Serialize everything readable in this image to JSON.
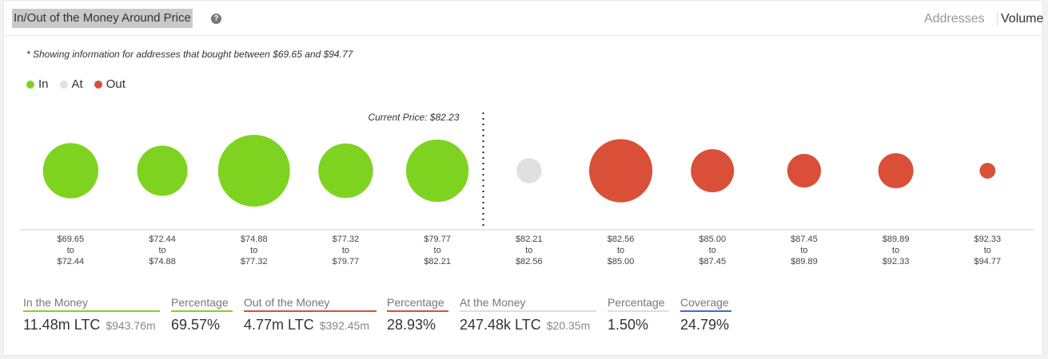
{
  "header": {
    "title": "In/Out of the Money Around Price",
    "help_icon": "question-circle-icon",
    "tabs": [
      {
        "label": "Addresses",
        "active": false
      },
      {
        "label": "Volume",
        "active": true
      }
    ]
  },
  "note": "* Showing information for addresses that bought between $69.65 and $94.77",
  "legend": [
    {
      "label": "In",
      "color": "#7ed321"
    },
    {
      "label": "At",
      "color": "#e0e0e0"
    },
    {
      "label": "Out",
      "color": "#d94f38"
    }
  ],
  "chart_data": {
    "type": "bubble",
    "current_price_label": "Current Price: $82.23",
    "current_price": 82.23,
    "colors": {
      "In": "#7ed321",
      "At": "#e0e0e0",
      "Out": "#d94f38"
    },
    "buckets": [
      {
        "from": "$69.65",
        "to": "$72.44",
        "status": "In",
        "relative_size": 0.77
      },
      {
        "from": "$72.44",
        "to": "$74.88",
        "status": "In",
        "relative_size": 0.7
      },
      {
        "from": "$74.88",
        "to": "$77.32",
        "status": "In",
        "relative_size": 1.0
      },
      {
        "from": "$77.32",
        "to": "$79.77",
        "status": "In",
        "relative_size": 0.76
      },
      {
        "from": "$79.77",
        "to": "$82.21",
        "status": "In",
        "relative_size": 0.87
      },
      {
        "from": "$82.21",
        "to": "$82.56",
        "status": "At",
        "relative_size": 0.35
      },
      {
        "from": "$82.56",
        "to": "$85.00",
        "status": "Out",
        "relative_size": 0.88
      },
      {
        "from": "$85.00",
        "to": "$87.45",
        "status": "Out",
        "relative_size": 0.6
      },
      {
        "from": "$87.45",
        "to": "$89.89",
        "status": "Out",
        "relative_size": 0.47
      },
      {
        "from": "$89.89",
        "to": "$92.33",
        "status": "Out",
        "relative_size": 0.49
      },
      {
        "from": "$92.33",
        "to": "$94.77",
        "status": "Out",
        "relative_size": 0.22
      }
    ],
    "to_word": "to"
  },
  "stats": [
    {
      "label": "In the Money",
      "value": "11.48m LTC",
      "sub": "$943.76m",
      "accent": "#7ed321"
    },
    {
      "label": "Percentage",
      "value": "69.57%",
      "sub": "",
      "accent": "#7ed321"
    },
    {
      "label": "Out of the Money",
      "value": "4.77m LTC",
      "sub": "$392.45m",
      "accent": "#d94f38"
    },
    {
      "label": "Percentage",
      "value": "28.93%",
      "sub": "",
      "accent": "#d94f38"
    },
    {
      "label": "At the Money",
      "value": "247.48k LTC",
      "sub": "$20.35m",
      "accent": "#dddddd"
    },
    {
      "label": "Percentage",
      "value": "1.50%",
      "sub": "",
      "accent": "#dddddd"
    },
    {
      "label": "Coverage",
      "value": "24.79%",
      "sub": "",
      "accent": "#3b6bd6"
    }
  ]
}
